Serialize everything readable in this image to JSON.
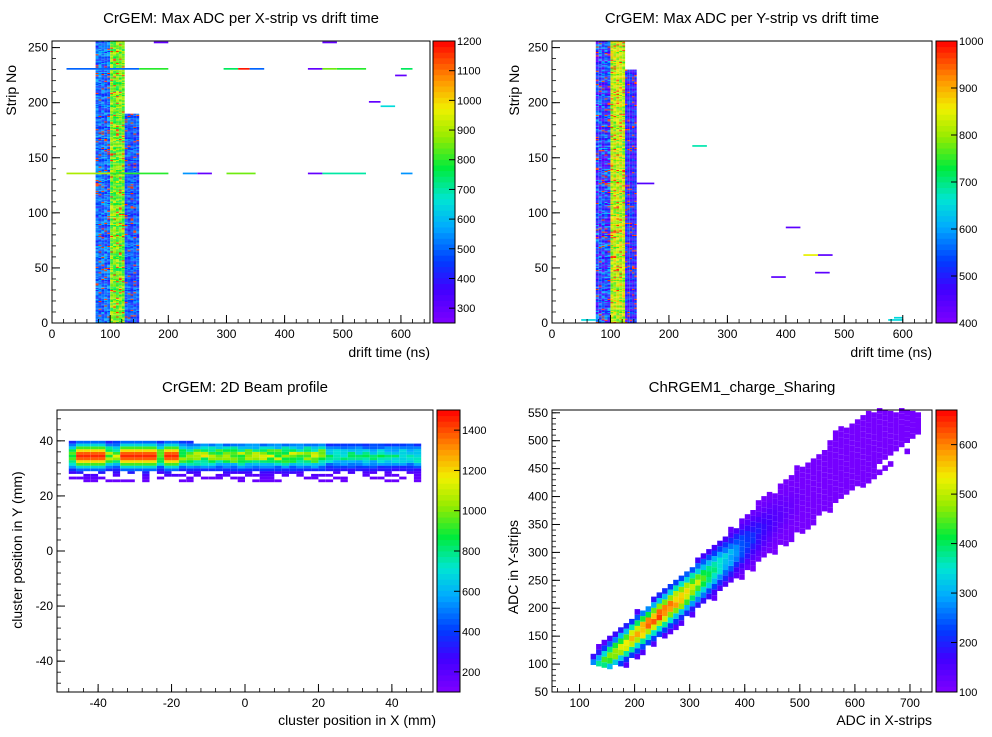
{
  "chart_data": [
    {
      "type": "heatmap",
      "title": "CrGEM: Max ADC per X-strip vs drift time",
      "xlabel": "drift time (ns)",
      "ylabel": "Strip No",
      "xlim": [
        0,
        650
      ],
      "ylim": [
        0,
        256
      ],
      "xticks": [
        0,
        100,
        200,
        300,
        400,
        500,
        600
      ],
      "yticks": [
        0,
        50,
        100,
        150,
        200,
        250
      ],
      "zlim": [
        250,
        1200
      ],
      "zticks": [
        300,
        400,
        500,
        600,
        700,
        800,
        900,
        1000,
        1100,
        1200
      ],
      "zticklabels": [
        "300",
        "400",
        "500",
        "600",
        "700",
        "800",
        "900",
        "1000",
        "1100",
        "1200"
      ],
      "bands": [
        {
          "x": [
            75,
            100
          ],
          "y": [
            0,
            256
          ],
          "z": [
            400,
            600
          ]
        },
        {
          "x": [
            100,
            125
          ],
          "y": [
            0,
            256
          ],
          "z": [
            750,
            950
          ]
        },
        {
          "x": [
            125,
            150
          ],
          "y": [
            0,
            190
          ],
          "z": [
            400,
            560
          ]
        }
      ],
      "segments": [
        {
          "x": [
            25,
            150
          ],
          "y": 230,
          "z": 500
        },
        {
          "x": [
            150,
            200
          ],
          "y": 230,
          "z": 800
        },
        {
          "x": [
            295,
            320
          ],
          "y": 230,
          "z": 750
        },
        {
          "x": [
            320,
            340
          ],
          "y": 230,
          "z": 1180
        },
        {
          "x": [
            340,
            365
          ],
          "y": 230,
          "z": 500
        },
        {
          "x": [
            440,
            465
          ],
          "y": 230,
          "z": 300
        },
        {
          "x": [
            465,
            490
          ],
          "y": 230,
          "z": 850
        },
        {
          "x": [
            490,
            540
          ],
          "y": 230,
          "z": 800
        },
        {
          "x": [
            600,
            620
          ],
          "y": 230,
          "z": 750
        },
        {
          "x": [
            25,
            100
          ],
          "y": 135,
          "z": 900
        },
        {
          "x": [
            100,
            200
          ],
          "y": 135,
          "z": 800
        },
        {
          "x": [
            225,
            250
          ],
          "y": 135,
          "z": 550
        },
        {
          "x": [
            250,
            275
          ],
          "y": 135,
          "z": 300
        },
        {
          "x": [
            300,
            350
          ],
          "y": 135,
          "z": 850
        },
        {
          "x": [
            440,
            465
          ],
          "y": 135,
          "z": 300
        },
        {
          "x": [
            465,
            540
          ],
          "y": 135,
          "z": 700
        },
        {
          "x": [
            600,
            620
          ],
          "y": 135,
          "z": 550
        },
        {
          "x": [
            545,
            565
          ],
          "y": 200,
          "z": 300
        },
        {
          "x": [
            565,
            590
          ],
          "y": 196,
          "z": 650
        },
        {
          "x": [
            590,
            610
          ],
          "y": 224,
          "z": 300
        },
        {
          "x": [
            175,
            200
          ],
          "y": 254,
          "z": 300
        },
        {
          "x": [
            465,
            490
          ],
          "y": 254,
          "z": 300
        }
      ]
    },
    {
      "type": "heatmap",
      "title": "CrGEM: Max ADC per Y-strip vs drift time",
      "xlabel": "drift time (ns)",
      "ylabel": "Strip No",
      "xlim": [
        0,
        650
      ],
      "ylim": [
        0,
        256
      ],
      "xticks": [
        0,
        100,
        200,
        300,
        400,
        500,
        600
      ],
      "yticks": [
        0,
        50,
        100,
        150,
        200,
        250
      ],
      "zlim": [
        400,
        1000
      ],
      "zticks": [
        400,
        500,
        600,
        700,
        800,
        900,
        1000
      ],
      "zticklabels": [
        "400",
        "500",
        "600",
        "700",
        "800",
        "900",
        "1000"
      ],
      "bands": [
        {
          "x": [
            75,
            100
          ],
          "y": [
            0,
            256
          ],
          "z": [
            420,
            620
          ]
        },
        {
          "x": [
            100,
            125
          ],
          "y": [
            0,
            256
          ],
          "z": [
            750,
            900
          ]
        },
        {
          "x": [
            125,
            145
          ],
          "y": [
            0,
            230
          ],
          "z": [
            440,
            560
          ]
        }
      ],
      "segments": [
        {
          "x": [
            50,
            75
          ],
          "y": 2,
          "z": 650
        },
        {
          "x": [
            240,
            265
          ],
          "y": 160,
          "z": 680
        },
        {
          "x": [
            400,
            425
          ],
          "y": 86,
          "z": 440
        },
        {
          "x": [
            430,
            455
          ],
          "y": 61,
          "z": 850
        },
        {
          "x": [
            455,
            480
          ],
          "y": 61,
          "z": 440
        },
        {
          "x": [
            450,
            475
          ],
          "y": 45,
          "z": 440
        },
        {
          "x": [
            375,
            400
          ],
          "y": 41,
          "z": 440
        },
        {
          "x": [
            145,
            175
          ],
          "y": 126,
          "z": 450
        },
        {
          "x": [
            575,
            600
          ],
          "y": 2,
          "z": 650
        },
        {
          "x": [
            585,
            600
          ],
          "y": 4,
          "z": 650
        }
      ]
    },
    {
      "type": "heatmap",
      "title": "CrGEM: 2D Beam profile",
      "xlabel": "cluster position in X (mm)",
      "ylabel": "cluster position in Y (mm)",
      "xlim": [
        -51.2,
        51.2
      ],
      "ylim": [
        -51.2,
        51.2
      ],
      "xticks": [
        -40,
        -20,
        0,
        20,
        40
      ],
      "yticks": [
        -40,
        -20,
        0,
        20,
        40
      ],
      "zlim": [
        100,
        1500
      ],
      "zticks": [
        200,
        400,
        600,
        800,
        1000,
        1200,
        1400
      ],
      "zticklabels": [
        "200",
        "400",
        "600",
        "800",
        "1000",
        "1200",
        "1400"
      ],
      "profile": {
        "x_range": [
          -48,
          47
        ],
        "y_core": [
          27,
          37
        ],
        "y_peak": 34,
        "peak_x_segments": [
          [
            -46,
            -38
          ],
          [
            -35,
            -25
          ],
          [
            -22,
            -18
          ]
        ],
        "peak_z": 1450,
        "edge_z": 150
      }
    },
    {
      "type": "heatmap",
      "title": "ChRGEM1_charge_Sharing",
      "xlabel": "ADC in X-strips",
      "ylabel": "ADC in Y-strips",
      "xlim": [
        50,
        740
      ],
      "ylim": [
        50,
        555
      ],
      "xticks": [
        100,
        200,
        300,
        400,
        500,
        600,
        700
      ],
      "yticks": [
        50,
        100,
        150,
        200,
        250,
        300,
        350,
        400,
        450,
        500,
        550
      ],
      "zlim": [
        100,
        670
      ],
      "zticks": [
        100,
        200,
        300,
        400,
        500,
        600
      ],
      "zticklabels": [
        "100",
        "200",
        "300",
        "400",
        "500",
        "600"
      ],
      "correlation": {
        "slope": 0.82,
        "intercept": -15,
        "x_range": [
          120,
          720
        ],
        "peak_x": 235,
        "peak_z": 660,
        "min_z": 100
      }
    }
  ]
}
